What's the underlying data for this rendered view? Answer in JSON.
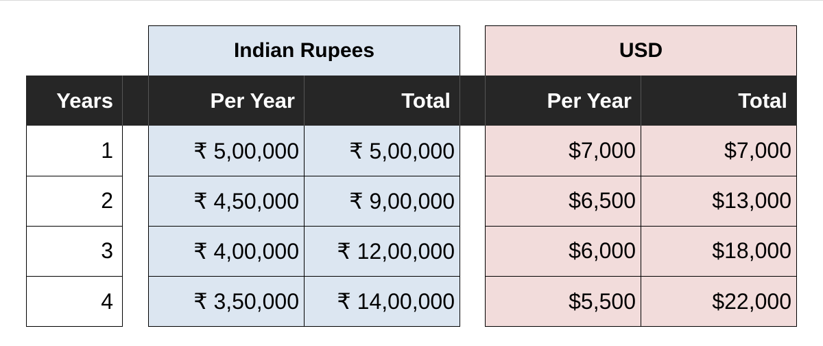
{
  "colors": {
    "header_band": "#262626",
    "rupees_fill": "#dce6f1",
    "usd_fill": "#f2dcdb",
    "border": "#000000"
  },
  "groups": {
    "rupees_label": "Indian Rupees",
    "usd_label": "USD"
  },
  "headers": {
    "years": "Years",
    "inr_per_year": "Per Year",
    "inr_total": "Total",
    "usd_per_year": "Per Year",
    "usd_total": "Total"
  },
  "rows": [
    {
      "year": "1",
      "inr_per_year": "₹ 5,00,000",
      "inr_total": "₹ 5,00,000",
      "usd_per_year": "$7,000",
      "usd_total": "$7,000"
    },
    {
      "year": "2",
      "inr_per_year": "₹ 4,50,000",
      "inr_total": "₹ 9,00,000",
      "usd_per_year": "$6,500",
      "usd_total": "$13,000"
    },
    {
      "year": "3",
      "inr_per_year": "₹ 4,00,000",
      "inr_total": "₹ 12,00,000",
      "usd_per_year": "$6,000",
      "usd_total": "$18,000"
    },
    {
      "year": "4",
      "inr_per_year": "₹ 3,50,000",
      "inr_total": "₹ 14,00,000",
      "usd_per_year": "$5,500",
      "usd_total": "$22,000"
    }
  ]
}
